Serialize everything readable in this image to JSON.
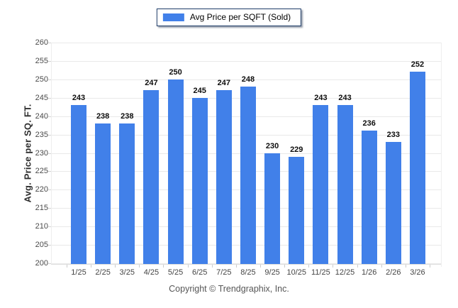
{
  "legend": {
    "label": "Avg Price per SQFT (Sold)"
  },
  "footer": {
    "text": "Copyright © Trendgraphix, Inc."
  },
  "colors": {
    "bar": "#4180e9",
    "legend_border": "#1e3c68",
    "gridline": "#e9e9e9",
    "value_label": "#0d0d0d",
    "tick_label": "#4a4a4a"
  },
  "chart_data": {
    "type": "bar",
    "title": "Avg Price per SQFT (Sold)",
    "categories": [
      "1/25",
      "2/25",
      "3/25",
      "4/25",
      "5/25",
      "6/25",
      "7/25",
      "8/25",
      "9/25",
      "10/25",
      "11/25",
      "12/25",
      "1/26",
      "2/26",
      "3/26"
    ],
    "values": [
      243,
      238,
      238,
      247,
      250,
      245,
      247,
      248,
      230,
      229,
      243,
      243,
      236,
      233,
      252
    ],
    "xlabel": "",
    "ylabel": "Avg. Price per SQ. FT.",
    "ylim": [
      200,
      260
    ],
    "ytick_step": 5,
    "yticks": [
      200,
      205,
      210,
      215,
      220,
      225,
      230,
      235,
      240,
      245,
      250,
      255,
      260
    ],
    "grid": true,
    "legend_position": "top-center",
    "value_labels": true,
    "bar_color": "#4180e9"
  }
}
